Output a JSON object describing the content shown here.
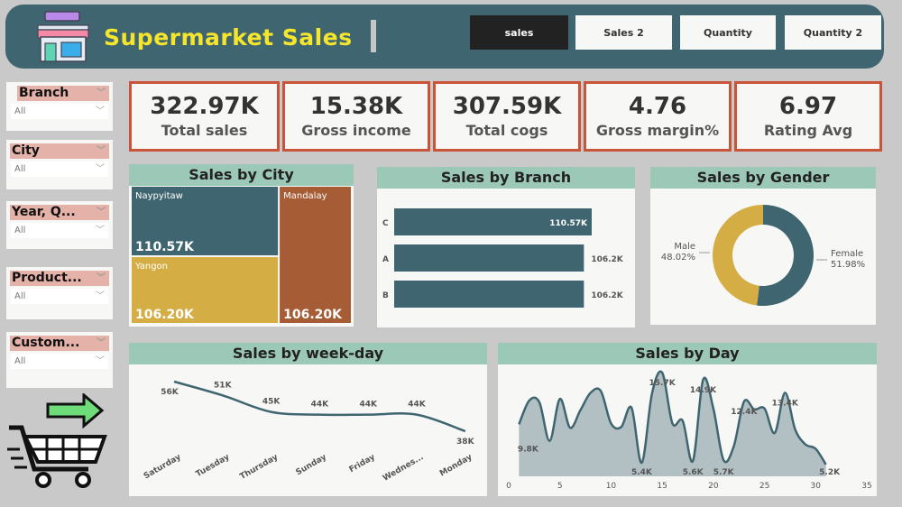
{
  "header": {
    "title": "Supermarket Sales",
    "logo_icon": "store-icon",
    "tabs": [
      {
        "label": "sales",
        "active": true
      },
      {
        "label": "Sales 2"
      },
      {
        "label": "Quantity"
      },
      {
        "label": "Quantity 2"
      }
    ]
  },
  "kpis": [
    {
      "value": "322.97K",
      "label": "Total sales"
    },
    {
      "value": "15.38K",
      "label": "Gross income"
    },
    {
      "value": "307.59K",
      "label": "Total cogs"
    },
    {
      "value": "4.76",
      "label": "Gross margin%"
    },
    {
      "value": "6.97",
      "label": "Rating Avg"
    }
  ],
  "filters": [
    {
      "label": "Branch",
      "value": "All"
    },
    {
      "label": "City",
      "value": "All"
    },
    {
      "label": "Year, Q...",
      "value": "All"
    },
    {
      "label": "Product...",
      "value": "All"
    },
    {
      "label": "Custom...",
      "value": "All"
    }
  ],
  "colors": {
    "primary": "#3f6670",
    "accent_yellow": "#d4ae45",
    "accent_brown": "#a65c35",
    "kpi_border": "#c8553a",
    "panel_header": "#9cc8b8"
  },
  "chart_data": [
    {
      "type": "treemap",
      "title": "Sales by City",
      "items": [
        {
          "name": "Naypyitaw",
          "value": 110.57,
          "label": "110.57K"
        },
        {
          "name": "Yangon",
          "value": 106.2,
          "label": "106.20K"
        },
        {
          "name": "Mandalay",
          "value": 106.2,
          "label": "106.20K"
        }
      ]
    },
    {
      "type": "bar",
      "orientation": "horizontal",
      "title": "Sales by Branch",
      "categories": [
        "C",
        "A",
        "B"
      ],
      "values": [
        110.57,
        106.2,
        106.2
      ],
      "labels": [
        "110.57K",
        "106.2K",
        "106.2K"
      ]
    },
    {
      "type": "pie",
      "donut": true,
      "title": "Sales by Gender",
      "slices": [
        {
          "name": "Female",
          "value": 51.98,
          "label": "51.98%"
        },
        {
          "name": "Male",
          "value": 48.02,
          "label": "48.02%"
        }
      ]
    },
    {
      "type": "line",
      "title": "Sales by week-day",
      "categories": [
        "Saturday",
        "Tuesday",
        "Thursday",
        "Sunday",
        "Friday",
        "Wednes...",
        "Monday"
      ],
      "values": [
        56,
        51,
        45,
        44,
        44,
        44,
        38
      ],
      "labels": [
        "56K",
        "51K",
        "45K",
        "44K",
        "44K",
        "44K",
        "38K"
      ]
    },
    {
      "type": "area",
      "title": "Sales by Day",
      "x": [
        1,
        2,
        3,
        4,
        5,
        6,
        7,
        8,
        9,
        10,
        11,
        12,
        13,
        14,
        15,
        16,
        17,
        18,
        19,
        20,
        21,
        22,
        23,
        24,
        25,
        26,
        27,
        28,
        29,
        30,
        31
      ],
      "values": [
        9.8,
        12.5,
        12.3,
        7.9,
        12.7,
        9.4,
        11.4,
        13.4,
        13.6,
        9.9,
        9.5,
        11.7,
        5.4,
        13.3,
        15.7,
        9.9,
        10.2,
        5.6,
        14.9,
        11.6,
        5.7,
        7.3,
        12.4,
        11.5,
        11.6,
        8.8,
        13.4,
        9.2,
        7.5,
        7.0,
        5.2
      ],
      "labels": [
        {
          "x": 1,
          "text": "9.8K"
        },
        {
          "x": 13,
          "text": "5.4K"
        },
        {
          "x": 15,
          "text": "15.7K"
        },
        {
          "x": 18,
          "text": "5.6K"
        },
        {
          "x": 19,
          "text": "14.9K"
        },
        {
          "x": 21,
          "text": "5.7K"
        },
        {
          "x": 23,
          "text": "12.4K"
        },
        {
          "x": 27,
          "text": "13.4K"
        },
        {
          "x": 31,
          "text": "5.2K"
        }
      ],
      "xticks": [
        0,
        5,
        10,
        15,
        20,
        25,
        30,
        35
      ],
      "xlim": [
        0,
        35
      ]
    }
  ]
}
